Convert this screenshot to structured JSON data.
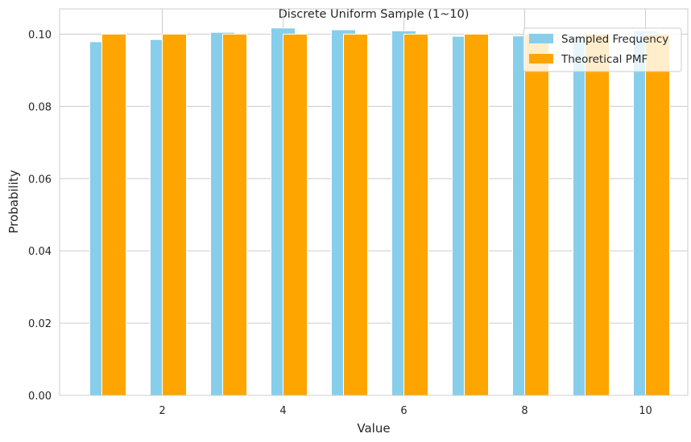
{
  "chart_data": {
    "type": "bar",
    "title": "Discrete Uniform Sample (1~10)",
    "xlabel": "Value",
    "ylabel": "Probability",
    "x": [
      1,
      2,
      3,
      4,
      5,
      6,
      7,
      8,
      9,
      10
    ],
    "xticks": [
      "2",
      "4",
      "6",
      "8",
      "10"
    ],
    "yticks": [
      "0.00",
      "0.02",
      "0.04",
      "0.06",
      "0.08",
      "0.10"
    ],
    "ylim": [
      0,
      0.107
    ],
    "xlim": [
      0.3,
      10.7
    ],
    "grid": true,
    "legend_position": "top-right",
    "series": [
      {
        "name": "Sampled Frequency",
        "color": "#87CEEB",
        "values": [
          0.0979,
          0.0985,
          0.1005,
          0.1017,
          0.1012,
          0.1009,
          0.0994,
          0.0995,
          0.0995,
          0.1009
        ]
      },
      {
        "name": "Theoretical PMF",
        "color": "#FFA500",
        "values": [
          0.1,
          0.1,
          0.1,
          0.1,
          0.1,
          0.1,
          0.1,
          0.1,
          0.1,
          0.1
        ]
      }
    ]
  }
}
